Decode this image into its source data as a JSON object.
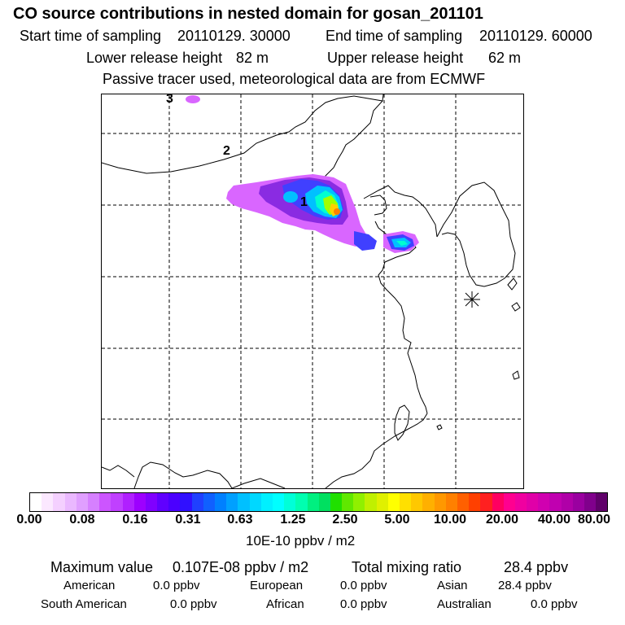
{
  "header": {
    "title": "CO  source contributions in nested domain for gosan_201101",
    "start_label": "Start time of sampling",
    "start_value": "20110129. 30000",
    "end_label": "End time of sampling",
    "end_value": "20110129. 60000",
    "lower_label": "Lower release height",
    "lower_value": "82 m",
    "upper_label": "Upper release height",
    "upper_value": "62 m",
    "note": "Passive tracer used, meteorological data are from ECMWF"
  },
  "map": {
    "trajectory_labels": [
      "1",
      "2",
      "3"
    ],
    "receptor_marker": "gosan-receptor-star",
    "plume_colors": [
      "#d966ff",
      "#8a2be2",
      "#4040ff",
      "#00c0ff",
      "#00ffd0",
      "#a0ff00",
      "#ffd000",
      "#ff8000"
    ]
  },
  "colorbar": {
    "ticks": [
      "0.00",
      "0.08",
      "0.16",
      "0.31",
      "0.63",
      "1.25",
      "2.50",
      "5.00",
      "10.00",
      "20.00",
      "40.00",
      "80.00"
    ],
    "unit": "10E-10 ppbv / m2",
    "colors": [
      "#ffffff",
      "#fbe8ff",
      "#f4d0ff",
      "#eab8ff",
      "#e09fff",
      "#d680ff",
      "#cc55ff",
      "#c040ff",
      "#b020ff",
      "#9d00ff",
      "#8000ff",
      "#6000ff",
      "#4b00ff",
      "#3010ff",
      "#2040ff",
      "#1060ff",
      "#0080ff",
      "#00a0ff",
      "#00c0ff",
      "#00d8ff",
      "#00f0ff",
      "#00ffff",
      "#00ffd8",
      "#00ffb0",
      "#00f080",
      "#00e060",
      "#20e000",
      "#60e800",
      "#90f000",
      "#c0f000",
      "#e0f000",
      "#ffff00",
      "#ffe000",
      "#ffc800",
      "#ffb000",
      "#ff9800",
      "#ff8000",
      "#ff6000",
      "#ff4000",
      "#ff2020",
      "#ff0060",
      "#ff0090",
      "#f000a0",
      "#e000a8",
      "#d000b0",
      "#c000b0",
      "#b000a8",
      "#9a00a0",
      "#80008c",
      "#60006a"
    ]
  },
  "summary": {
    "max_label": "Maximum value",
    "max_value": "0.107E-08 ppbv / m2",
    "total_label": "Total mixing ratio",
    "total_value": "28.4 ppbv",
    "regions": [
      {
        "name": "American",
        "value": "0.0 ppbv"
      },
      {
        "name": "European",
        "value": "0.0 ppbv"
      },
      {
        "name": "Asian",
        "value": "28.4 ppbv"
      },
      {
        "name": "South American",
        "value": "0.0 ppbv"
      },
      {
        "name": "African",
        "value": "0.0 ppbv"
      },
      {
        "name": "Australian",
        "value": "0.0 ppbv"
      }
    ]
  }
}
